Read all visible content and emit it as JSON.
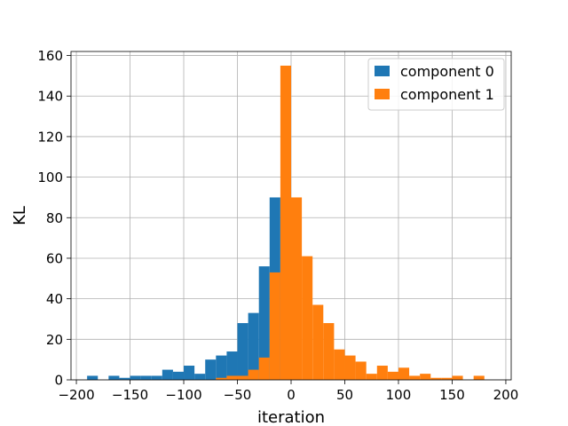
{
  "chart_data": {
    "type": "bar",
    "subtype": "overlapping-histogram",
    "title": "",
    "xlabel": "iteration",
    "ylabel": "KL",
    "xlim": [
      -205,
      205
    ],
    "ylim": [
      0,
      162
    ],
    "xticks": [
      -200,
      -150,
      -100,
      -50,
      0,
      50,
      100,
      150,
      200
    ],
    "yticks": [
      0,
      20,
      40,
      60,
      80,
      100,
      120,
      140,
      160
    ],
    "grid": true,
    "legend": {
      "position": "top-right"
    },
    "bin_width": 10,
    "series": [
      {
        "name": "component 0",
        "color": "#1f77b4",
        "bins": [
          {
            "x0": -190,
            "x1": -180,
            "count": 2
          },
          {
            "x0": -170,
            "x1": -160,
            "count": 2
          },
          {
            "x0": -160,
            "x1": -150,
            "count": 1
          },
          {
            "x0": -150,
            "x1": -140,
            "count": 2
          },
          {
            "x0": -140,
            "x1": -130,
            "count": 2
          },
          {
            "x0": -130,
            "x1": -120,
            "count": 2
          },
          {
            "x0": -120,
            "x1": -110,
            "count": 5
          },
          {
            "x0": -110,
            "x1": -100,
            "count": 4
          },
          {
            "x0": -100,
            "x1": -90,
            "count": 7
          },
          {
            "x0": -90,
            "x1": -80,
            "count": 3
          },
          {
            "x0": -80,
            "x1": -70,
            "count": 10
          },
          {
            "x0": -70,
            "x1": -60,
            "count": 12
          },
          {
            "x0": -60,
            "x1": -50,
            "count": 14
          },
          {
            "x0": -50,
            "x1": -40,
            "count": 28
          },
          {
            "x0": -40,
            "x1": -30,
            "count": 33
          },
          {
            "x0": -30,
            "x1": -20,
            "count": 56
          },
          {
            "x0": -20,
            "x1": -10,
            "count": 90
          }
        ]
      },
      {
        "name": "component 1",
        "color": "#ff7f0e",
        "bins": [
          {
            "x0": -70,
            "x1": -60,
            "count": 1
          },
          {
            "x0": -60,
            "x1": -50,
            "count": 2
          },
          {
            "x0": -50,
            "x1": -40,
            "count": 2
          },
          {
            "x0": -40,
            "x1": -30,
            "count": 5
          },
          {
            "x0": -30,
            "x1": -20,
            "count": 11
          },
          {
            "x0": -20,
            "x1": -10,
            "count": 53
          },
          {
            "x0": -10,
            "x1": 0,
            "count": 155
          },
          {
            "x0": 0,
            "x1": 10,
            "count": 90
          },
          {
            "x0": 10,
            "x1": 20,
            "count": 61
          },
          {
            "x0": 20,
            "x1": 30,
            "count": 37
          },
          {
            "x0": 30,
            "x1": 40,
            "count": 28
          },
          {
            "x0": 40,
            "x1": 50,
            "count": 15
          },
          {
            "x0": 50,
            "x1": 60,
            "count": 12
          },
          {
            "x0": 60,
            "x1": 70,
            "count": 9
          },
          {
            "x0": 70,
            "x1": 80,
            "count": 3
          },
          {
            "x0": 80,
            "x1": 90,
            "count": 7
          },
          {
            "x0": 90,
            "x1": 100,
            "count": 4
          },
          {
            "x0": 100,
            "x1": 110,
            "count": 6
          },
          {
            "x0": 110,
            "x1": 120,
            "count": 2
          },
          {
            "x0": 120,
            "x1": 130,
            "count": 3
          },
          {
            "x0": 130,
            "x1": 140,
            "count": 1
          },
          {
            "x0": 140,
            "x1": 150,
            "count": 1
          },
          {
            "x0": 150,
            "x1": 160,
            "count": 2
          },
          {
            "x0": 170,
            "x1": 180,
            "count": 2
          }
        ]
      }
    ]
  }
}
